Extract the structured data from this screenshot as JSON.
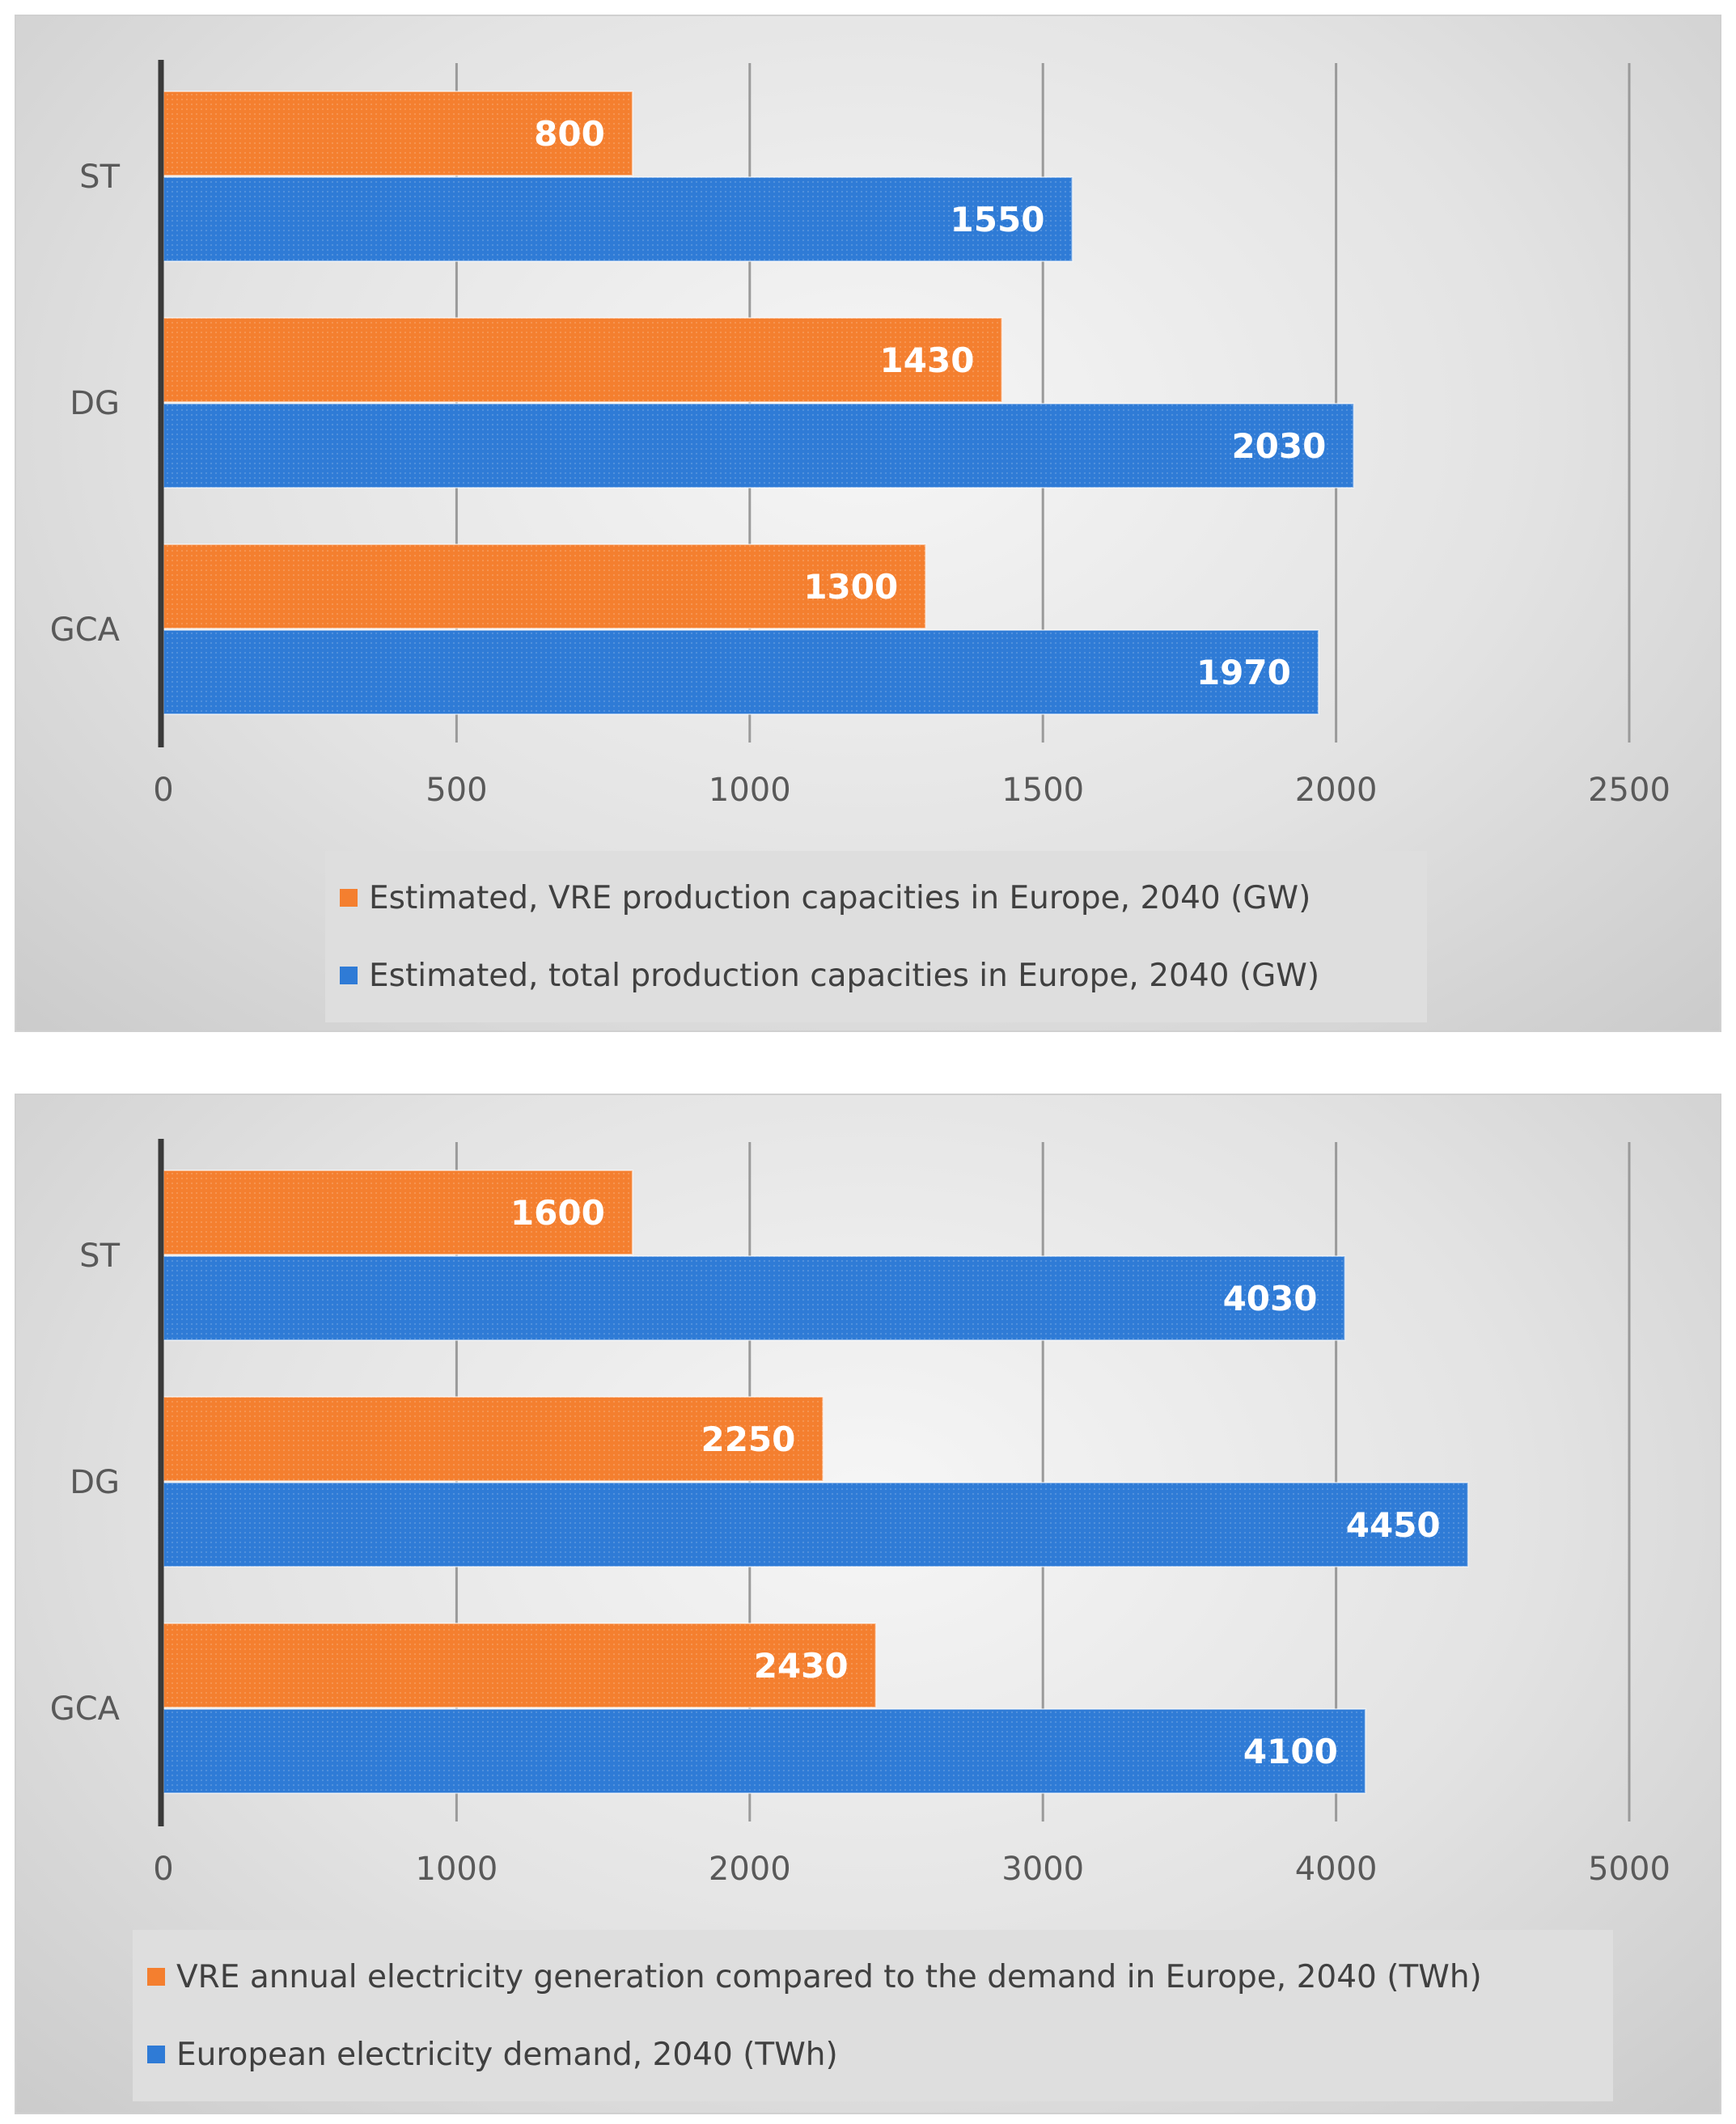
{
  "colors": {
    "orange": "#F47F2F",
    "blue": "#2F7BD6",
    "axis": "#3a3a3a",
    "grid": "#9a9a9a",
    "tick_text": "#595959",
    "data_label": "#ffffff"
  },
  "chart_data": [
    {
      "type": "bar",
      "orientation": "horizontal",
      "categories": [
        "ST",
        "DG",
        "GCA"
      ],
      "series": [
        {
          "name": "Estimated, VRE production capacities in Europe, 2040 (GW)",
          "color": "#F47F2F",
          "values": [
            800,
            1430,
            1300
          ]
        },
        {
          "name": "Estimated, total production capacities in Europe, 2040 (GW)",
          "color": "#2F7BD6",
          "values": [
            1550,
            2030,
            1970
          ]
        }
      ],
      "xlim": [
        0,
        2500
      ],
      "xticks": [
        0,
        500,
        1000,
        1500,
        2000,
        2500
      ],
      "grid": true,
      "legend_position": "bottom",
      "data_labels": true,
      "title": "",
      "xlabel": "",
      "ylabel": ""
    },
    {
      "type": "bar",
      "orientation": "horizontal",
      "categories": [
        "ST",
        "DG",
        "GCA"
      ],
      "series": [
        {
          "name": "VRE annual electricity generation compared to the demand in Europe, 2040 (TWh)",
          "color": "#F47F2F",
          "values": [
            1600,
            2250,
            2430
          ]
        },
        {
          "name": "European electricity demand, 2040 (TWh)",
          "color": "#2F7BD6",
          "values": [
            4030,
            4450,
            4100
          ]
        }
      ],
      "xlim": [
        0,
        5000
      ],
      "xticks": [
        0,
        1000,
        2000,
        3000,
        4000,
        5000
      ],
      "grid": true,
      "legend_position": "bottom",
      "data_labels": true,
      "title": "",
      "xlabel": "",
      "ylabel": ""
    }
  ]
}
